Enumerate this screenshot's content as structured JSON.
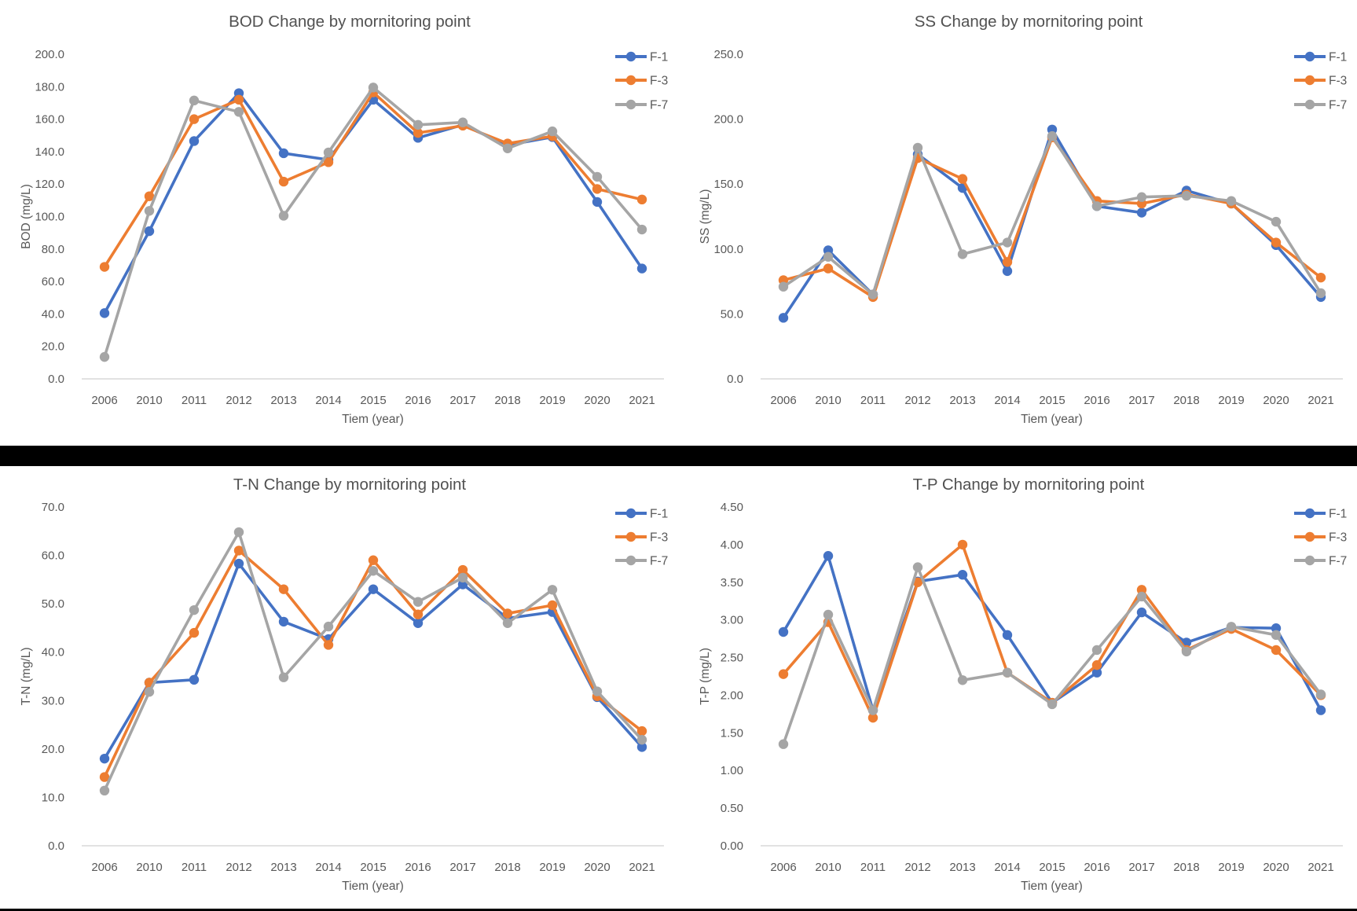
{
  "app": {
    "description_text": "Four line charts of water quality change by monitoring point",
    "series_legend": [
      "F-1",
      "F-3",
      "F-7"
    ],
    "colors": {
      "series_f1": "#4472C4",
      "series_f3": "#ED7D31",
      "series_f7": "#A5A5A5",
      "title_text": "#515151",
      "axis_text": "#595959",
      "axis_line": "#D9D9D9",
      "divider": "#000000",
      "background": "#FFFFFF"
    }
  },
  "chart_data": [
    {
      "type": "line",
      "title": "BOD Change by mornitoring point",
      "xlabel": "Tiem (year)",
      "ylabel": "BOD (mg/L)",
      "ylim": [
        0,
        200
      ],
      "ytick_step": 20,
      "ytick_labels": [
        "0.0",
        "20.0",
        "40.0",
        "60.0",
        "80.0",
        "100.0",
        "120.0",
        "140.0",
        "160.0",
        "180.0",
        "200.0"
      ],
      "grid": false,
      "legend_position": "right-top",
      "categories": [
        "2006",
        "2010",
        "2011",
        "2012",
        "2013",
        "2014",
        "2015",
        "2016",
        "2017",
        "2018",
        "2019",
        "2020",
        "2021"
      ],
      "series": [
        {
          "name": "F-1",
          "color": "#4472C4",
          "values": [
            40.5,
            91,
            146.5,
            176,
            139,
            135,
            172,
            148.5,
            156.5,
            144,
            149,
            109,
            68
          ]
        },
        {
          "name": "F-3",
          "color": "#ED7D31",
          "values": [
            69,
            112.5,
            160,
            172,
            121.5,
            133.5,
            176.5,
            151.5,
            156,
            145,
            149.5,
            117,
            110.5
          ]
        },
        {
          "name": "F-7",
          "color": "#A5A5A5",
          "values": [
            13.5,
            103.5,
            171.5,
            164.5,
            100.5,
            139.5,
            179.5,
            156.5,
            158,
            142,
            152.5,
            124.5,
            92
          ]
        }
      ]
    },
    {
      "type": "line",
      "title": "SS Change by mornitoring point",
      "xlabel": "Tiem (year)",
      "ylabel": "SS (mg/L)",
      "ylim": [
        0,
        250
      ],
      "ytick_step": 50,
      "ytick_labels": [
        "0.0",
        "50.0",
        "100.0",
        "150.0",
        "200.0",
        "250.0"
      ],
      "grid": false,
      "legend_position": "right-top",
      "categories": [
        "2006",
        "2010",
        "2011",
        "2012",
        "2013",
        "2014",
        "2015",
        "2016",
        "2017",
        "2018",
        "2019",
        "2020",
        "2021"
      ],
      "series": [
        {
          "name": "F-1",
          "color": "#4472C4",
          "values": [
            47,
            99,
            65,
            173,
            147,
            83,
            192,
            133,
            128,
            145,
            135,
            103,
            63
          ]
        },
        {
          "name": "F-3",
          "color": "#ED7D31",
          "values": [
            76,
            85,
            63,
            170,
            154,
            90,
            186,
            137,
            135,
            142,
            135,
            105,
            78
          ]
        },
        {
          "name": "F-7",
          "color": "#A5A5A5",
          "values": [
            71,
            94,
            65,
            178,
            96,
            105,
            187,
            133,
            140,
            141,
            137,
            121,
            66
          ]
        }
      ]
    },
    {
      "type": "line",
      "title": "T-N Change by mornitoring point",
      "xlabel": "Tiem (year)",
      "ylabel": "T-N (mg/L)",
      "ylim": [
        0,
        70
      ],
      "ytick_step": 10,
      "ytick_labels": [
        "0.0",
        "10.0",
        "20.0",
        "30.0",
        "40.0",
        "50.0",
        "60.0",
        "70.0"
      ],
      "grid": false,
      "legend_position": "right-top",
      "categories": [
        "2006",
        "2010",
        "2011",
        "2012",
        "2013",
        "2014",
        "2015",
        "2016",
        "2017",
        "2018",
        "2019",
        "2020",
        "2021"
      ],
      "series": [
        {
          "name": "F-1",
          "color": "#4472C4",
          "values": [
            18,
            33.7,
            34.3,
            58.3,
            46.3,
            42.7,
            53,
            46,
            54,
            47,
            48.3,
            30.7,
            20.4
          ]
        },
        {
          "name": "F-3",
          "color": "#ED7D31",
          "values": [
            14.2,
            33.7,
            44,
            61,
            53,
            41.5,
            59,
            47.8,
            57,
            48,
            49.7,
            30.9,
            23.7
          ]
        },
        {
          "name": "F-7",
          "color": "#A5A5A5",
          "values": [
            11.4,
            31.8,
            48.7,
            64.8,
            34.8,
            45.3,
            56.8,
            50.4,
            55.4,
            46,
            52.9,
            31.9,
            21.9
          ]
        }
      ]
    },
    {
      "type": "line",
      "title": "T-P Change by mornitoring point",
      "xlabel": "Tiem (year)",
      "ylabel": "T-P (mg/L)",
      "ylim": [
        0,
        4.5
      ],
      "ytick_step": 0.5,
      "ytick_labels": [
        "0.00",
        "0.50",
        "1.00",
        "1.50",
        "2.00",
        "2.50",
        "3.00",
        "3.50",
        "4.00",
        "4.50"
      ],
      "grid": false,
      "legend_position": "right-top",
      "categories": [
        "2006",
        "2010",
        "2011",
        "2012",
        "2013",
        "2014",
        "2015",
        "2016",
        "2017",
        "2018",
        "2019",
        "2020",
        "2021"
      ],
      "series": [
        {
          "name": "F-1",
          "color": "#4472C4",
          "values": [
            2.84,
            3.85,
            1.8,
            3.51,
            3.6,
            2.8,
            1.9,
            2.3,
            3.1,
            2.7,
            2.9,
            2.89,
            1.8
          ]
        },
        {
          "name": "F-3",
          "color": "#ED7D31",
          "values": [
            2.28,
            2.97,
            1.7,
            3.5,
            4.0,
            2.3,
            1.9,
            2.4,
            3.4,
            2.6,
            2.88,
            2.6,
            2.0
          ]
        },
        {
          "name": "F-7",
          "color": "#A5A5A5",
          "values": [
            1.35,
            3.07,
            1.8,
            3.7,
            2.2,
            2.3,
            1.88,
            2.6,
            3.31,
            2.58,
            2.91,
            2.8,
            2.01
          ]
        }
      ]
    }
  ]
}
